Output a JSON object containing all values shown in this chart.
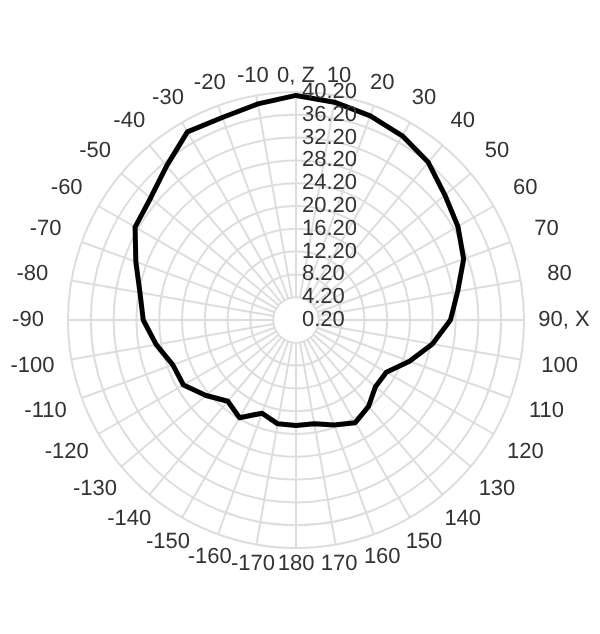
{
  "chart_data": {
    "type": "radar",
    "categories": [
      "0, Z",
      "10",
      "20",
      "30",
      "40",
      "50",
      "60",
      "70",
      "80",
      "90, X",
      "100",
      "110",
      "120",
      "130",
      "140",
      "150",
      "160",
      "170",
      "180",
      "-170",
      "-160",
      "-150",
      "-140",
      "-130",
      "-120",
      "-110",
      "-100",
      "-90",
      "-80",
      "-70",
      "-60",
      "-50",
      "-40",
      "-30",
      "-20",
      "-10"
    ],
    "series": [
      {
        "color": "#000000",
        "values": [
          39.6,
          39,
          38.3,
          37.5,
          36.3,
          34.3,
          33,
          31.5,
          29,
          27.3,
          24.5,
          21.4,
          18.5,
          18.4,
          20,
          21,
          19.8,
          18.7,
          18.7,
          18.7,
          17.6,
          20,
          18.8,
          20.8,
          23,
          23.2,
          25.1,
          27,
          28,
          30.1,
          32.8,
          33.5,
          35.5,
          38.3,
          38,
          38.7
        ]
      }
    ],
    "ylim": [
      0.2,
      40.2
    ],
    "yticks": [
      {
        "value": 0.2,
        "label": "0.20"
      },
      {
        "value": 4.2,
        "label": "4.20"
      },
      {
        "value": 8.2,
        "label": "8.20"
      },
      {
        "value": 12.2,
        "label": "12.20"
      },
      {
        "value": 16.2,
        "label": "16.20"
      },
      {
        "value": 20.2,
        "label": "20.20"
      },
      {
        "value": 24.2,
        "label": "24.20"
      },
      {
        "value": 28.2,
        "label": "28.20"
      },
      {
        "value": 32.2,
        "label": "32.20"
      },
      {
        "value": 36.2,
        "label": "36.20"
      },
      {
        "value": 40.2,
        "label": "40.20"
      }
    ],
    "grid": true
  }
}
